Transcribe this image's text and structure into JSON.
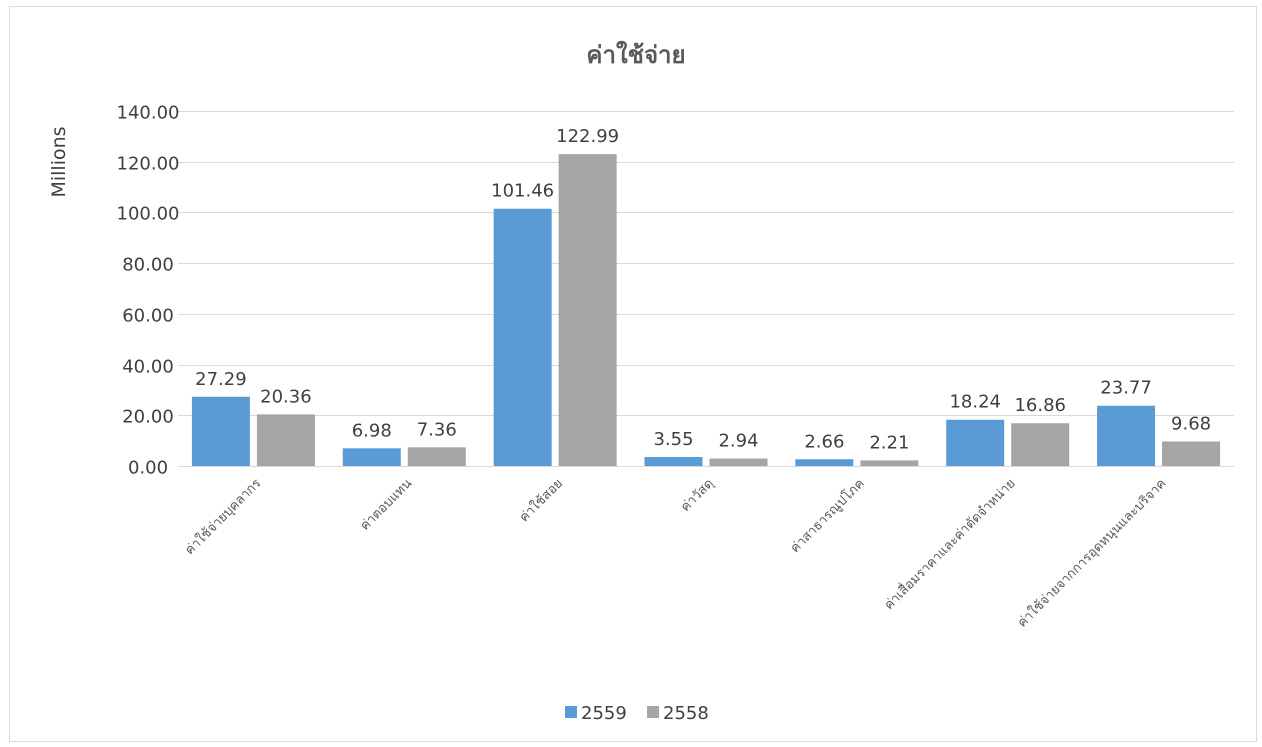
{
  "chart_data": {
    "type": "bar",
    "title": "ค่าใช้จ่าย",
    "ylabel": "Millions",
    "xlabel": "",
    "ylim": [
      0,
      140
    ],
    "yticks": [
      "0.00",
      "20.00",
      "40.00",
      "60.00",
      "80.00",
      "100.00",
      "120.00",
      "140.00"
    ],
    "grid": true,
    "legend_position": "bottom",
    "categories": [
      "ค่าใช้จ่ายบุคลากร",
      "ค่าตอบแทน",
      "ค่าใช้สอย",
      "ค่าวัสดุ",
      "ค่าสาธารณูปโภค",
      "ค่าเสื่อมราคาและค่าตัดจำหน่าย",
      "ค่าใช้จ่ายจากการอุดหนุนและบริจาค"
    ],
    "series": [
      {
        "name": "2559",
        "color": "#5b9bd5",
        "values": [
          27.29,
          6.98,
          101.46,
          3.55,
          2.66,
          18.24,
          23.77
        ],
        "labels": [
          "27.29",
          "6.98",
          "101.46",
          "3.55",
          "2.66",
          "18.24",
          "23.77"
        ]
      },
      {
        "name": "2558",
        "color": "#a5a5a5",
        "values": [
          20.36,
          7.36,
          122.99,
          2.94,
          2.21,
          16.86,
          9.68
        ],
        "labels": [
          "20.36",
          "7.36",
          "122.99",
          "2.94",
          "2.21",
          "16.86",
          "9.68"
        ]
      }
    ]
  }
}
